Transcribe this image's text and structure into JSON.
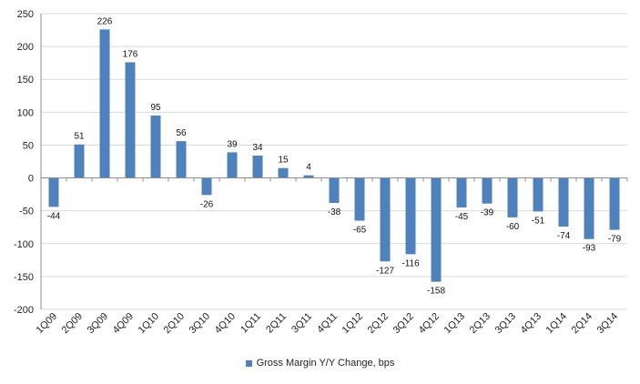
{
  "chart_data": {
    "type": "bar",
    "title": "",
    "xlabel": "",
    "ylabel": "",
    "ylim": [
      -200,
      250
    ],
    "yticks": [
      -200,
      -150,
      -100,
      -50,
      0,
      50,
      100,
      150,
      200,
      250
    ],
    "grid": true,
    "legend_position": "bottom",
    "categories": [
      "1Q09",
      "2Q09",
      "3Q09",
      "4Q09",
      "1Q10",
      "2Q10",
      "3Q10",
      "4Q10",
      "1Q11",
      "2Q11",
      "3Q11",
      "4Q11",
      "1Q12",
      "2Q12",
      "3Q12",
      "4Q12",
      "1Q13",
      "2Q13",
      "3Q13",
      "4Q13",
      "1Q14",
      "2Q14",
      "3Q14"
    ],
    "series": [
      {
        "name": "Gross Margin Y/Y Change, bps",
        "color": "#4f81bd",
        "values": [
          -44,
          51,
          226,
          176,
          95,
          56,
          -26,
          39,
          34,
          15,
          4,
          -38,
          -65,
          -127,
          -116,
          -158,
          -45,
          -39,
          -60,
          -51,
          -74,
          -93,
          -79
        ]
      }
    ]
  }
}
